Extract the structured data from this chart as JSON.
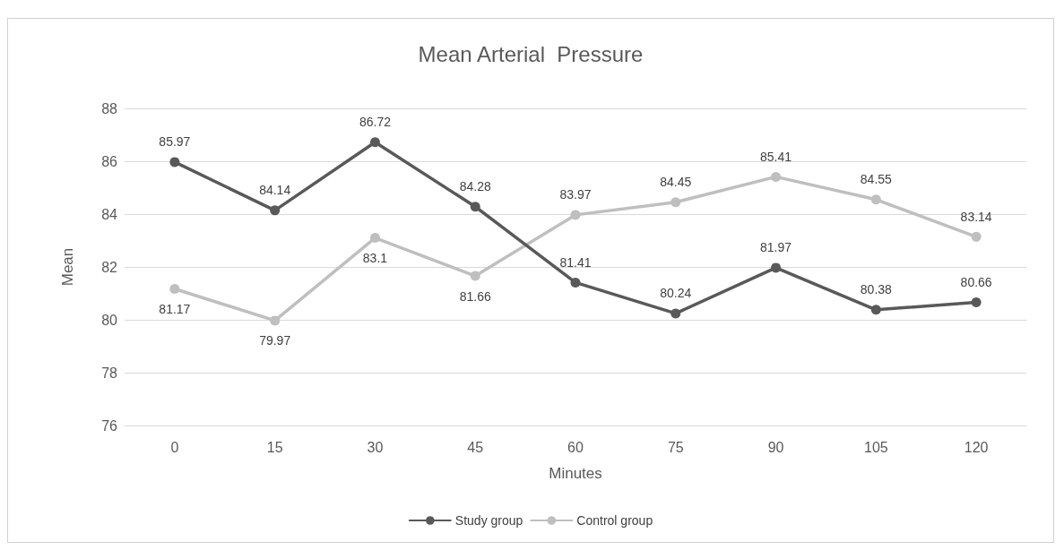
{
  "chart_data": {
    "type": "line",
    "title": "Mean Arterial  Pressure",
    "xlabel": "Minutes",
    "ylabel": "Mean",
    "categories": [
      "0",
      "15",
      "30",
      "45",
      "60",
      "75",
      "90",
      "105",
      "120"
    ],
    "series": [
      {
        "name": "Study group",
        "color": "#595959",
        "values": [
          85.97,
          84.14,
          86.72,
          84.28,
          81.41,
          80.24,
          81.97,
          80.38,
          80.66
        ]
      },
      {
        "name": "Control group",
        "color": "#bfbfbf",
        "values": [
          81.17,
          79.97,
          83.1,
          81.66,
          83.97,
          84.45,
          85.41,
          84.55,
          83.14
        ]
      }
    ],
    "ylim": [
      76,
      88
    ],
    "yticks": [
      76,
      78,
      80,
      82,
      84,
      86,
      88
    ],
    "grid": "y",
    "legend": "bottom",
    "marker": "circle",
    "line_style": "solid",
    "data_labels": true
  }
}
